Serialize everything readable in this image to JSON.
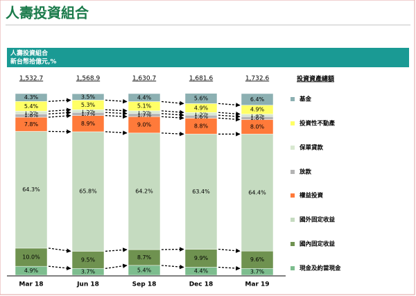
{
  "chart_data": {
    "type": "stacked_bar",
    "title": "人壽投資組合",
    "header": "人壽投資組合",
    "unit": "新台幣拾億元,%",
    "legend_title": "投資資產總額",
    "categories": [
      "Mar 18",
      "Jun 18",
      "Sep 18",
      "Dec 18",
      "Mar 19"
    ],
    "totals": [
      {
        "value": 1532.7,
        "label": "1,532.7"
      },
      {
        "value": 1568.9,
        "label": "1,568.9"
      },
      {
        "value": 1630.7,
        "label": "1,630.7"
      },
      {
        "value": 1681.6,
        "label": "1,681.6"
      },
      {
        "value": 1732.6,
        "label": "1,732.6"
      }
    ],
    "ylim": [
      0,
      100
    ],
    "series": [
      {
        "name": "現金及約當現金",
        "color": "#7dbd8e",
        "values": [
          4.9,
          3.7,
          5.4,
          4.4,
          3.7
        ],
        "value_labels": [
          "4.9%",
          "3.7%",
          "5.4%",
          "4.4%",
          "3.7%"
        ]
      },
      {
        "name": "國內固定收益",
        "color": "#6f9250",
        "values": [
          10.0,
          9.5,
          8.7,
          9.9,
          9.6
        ],
        "value_labels": [
          "10.0%",
          "9.5%",
          "8.7%",
          "9.9%",
          "9.6%"
        ]
      },
      {
        "name": "國外固定收益",
        "color": "#c5dbc0",
        "values": [
          64.3,
          65.8,
          64.2,
          63.4,
          64.4
        ],
        "value_labels": [
          "64.3%",
          "65.8%",
          "64.2%",
          "63.4%",
          "64.4%"
        ]
      },
      {
        "name": "權益投資",
        "color": "#ff7a3a",
        "values": [
          7.8,
          8.9,
          9.0,
          8.8,
          8.0
        ],
        "value_labels": [
          "7.8%",
          "8.9%",
          "9.0%",
          "8.8%",
          "8.0%"
        ]
      },
      {
        "name": "放款",
        "color": "#b4b4b4",
        "values": [
          1.8,
          1.7,
          1.7,
          1.6,
          1.6
        ],
        "value_labels": [
          "1.8%",
          "1.7%",
          "1.7%",
          "1.6%",
          "1.6%"
        ]
      },
      {
        "name": "保單貸款",
        "color": "#d8e8d0",
        "values": [
          1.5,
          1.5,
          1.5,
          1.5,
          1.4
        ],
        "value_labels": [
          "1.5%",
          "1.5%",
          "1.5%",
          "1.5%",
          "1.4%"
        ]
      },
      {
        "name": "投資性不動產",
        "color": "#ffff66",
        "values": [
          5.4,
          5.3,
          5.1,
          4.9,
          4.9
        ],
        "value_labels": [
          "5.4%",
          "5.3%",
          "5.1%",
          "4.9%",
          "4.9%"
        ]
      },
      {
        "name": "基金",
        "color": "#8cb0b2",
        "values": [
          4.3,
          3.5,
          4.4,
          5.6,
          6.4
        ],
        "value_labels": [
          "4.3%",
          "3.5%",
          "4.4%",
          "5.6%",
          "6.4%"
        ]
      }
    ]
  }
}
